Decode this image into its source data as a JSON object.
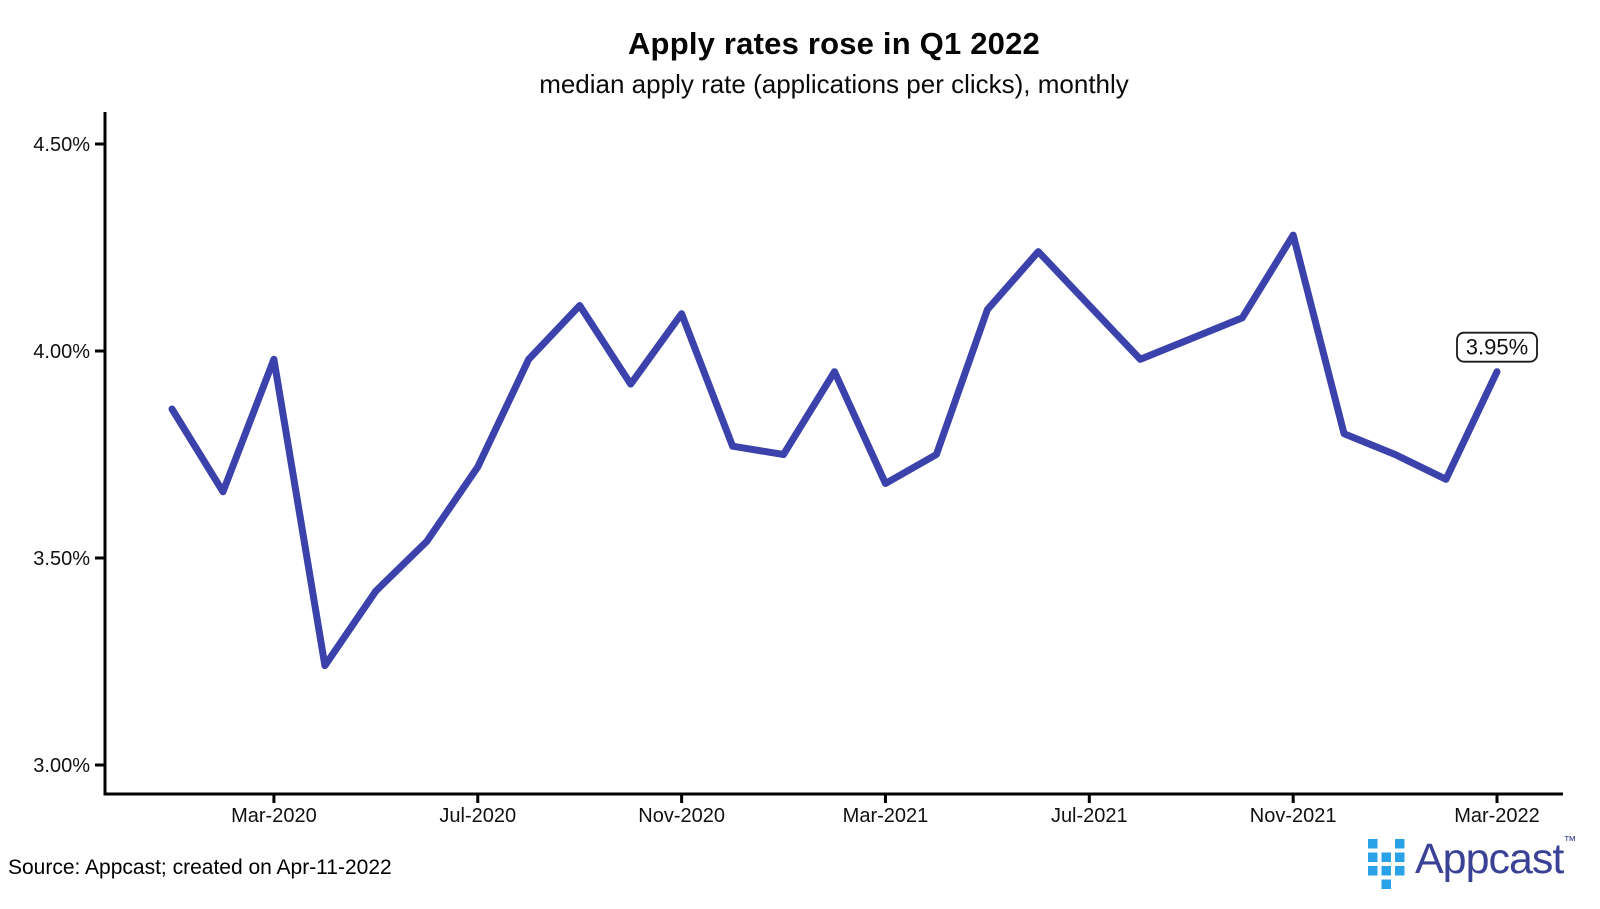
{
  "header": {
    "title": "Apply rates rose in Q1 2022",
    "subtitle": "median apply rate (applications per clicks), monthly"
  },
  "chart_data": {
    "type": "line",
    "title": "Apply rates rose in Q1 2022",
    "subtitle": "median apply rate (applications per clicks), monthly",
    "unit": "percent",
    "grid": false,
    "legend": false,
    "line_color": "#3B42AC",
    "x": [
      "Jan-2020",
      "Feb-2020",
      "Mar-2020",
      "Apr-2020",
      "May-2020",
      "Jun-2020",
      "Jul-2020",
      "Aug-2020",
      "Sep-2020",
      "Oct-2020",
      "Nov-2020",
      "Dec-2020",
      "Jan-2021",
      "Feb-2021",
      "Mar-2021",
      "Apr-2021",
      "May-2021",
      "Jun-2021",
      "Jul-2021",
      "Aug-2021",
      "Sep-2021",
      "Oct-2021",
      "Nov-2021",
      "Dec-2021",
      "Jan-2022",
      "Feb-2022",
      "Mar-2022"
    ],
    "series": [
      {
        "name": "median apply rate",
        "values": [
          3.86,
          3.66,
          3.98,
          3.24,
          3.42,
          3.54,
          3.72,
          3.98,
          4.11,
          3.92,
          4.09,
          3.77,
          3.75,
          3.95,
          3.68,
          3.75,
          4.1,
          4.24,
          4.11,
          3.98,
          4.03,
          4.08,
          4.28,
          3.8,
          3.75,
          3.69,
          3.95
        ]
      }
    ],
    "yticks": {
      "values": [
        4.5,
        4.0,
        3.5,
        3.0
      ],
      "labels": [
        "4.50%",
        "4.00%",
        "3.50%",
        "3.00%"
      ]
    },
    "xtick_labels": [
      "Mar-2020",
      "Jul-2020",
      "Nov-2020",
      "Mar-2021",
      "Jul-2021",
      "Nov-2021",
      "Mar-2022"
    ],
    "ylim": [
      2.93,
      4.58
    ],
    "annotation": {
      "label": "3.95%",
      "value": 3.95,
      "x": "Mar-2022"
    }
  },
  "footer": {
    "source": "Source: Appcast; created on Apr-11-2022"
  },
  "logo": {
    "wordmark": "Appcast",
    "tm": "™",
    "square_color": "#29A2E8",
    "text_color": "#3A4296"
  }
}
